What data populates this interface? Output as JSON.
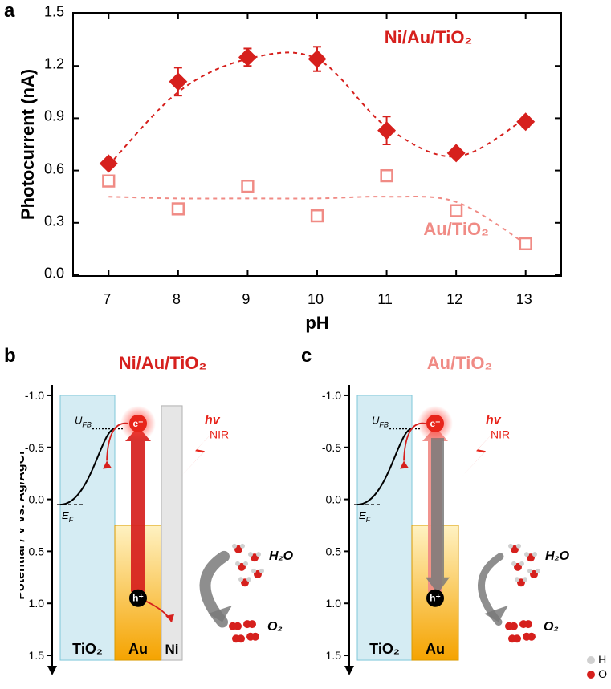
{
  "panel_a": {
    "label": "a",
    "type": "scatter_errorbar",
    "xlabel": "pH",
    "ylabel": "Photocurrent (nA)",
    "label_fontsize": 22,
    "tick_fontsize": 18,
    "xlim": [
      6.5,
      13.5
    ],
    "ylim": [
      0.0,
      1.5
    ],
    "xticks": [
      7,
      8,
      9,
      10,
      11,
      12,
      13
    ],
    "yticks": [
      0.0,
      0.3,
      0.6,
      0.9,
      1.2,
      1.5
    ],
    "background_color": "#ffffff",
    "border_color": "#000000",
    "series": [
      {
        "name": "Ni/Au/TiO2",
        "display_label": "Ni/Au/TiO₂",
        "color": "#d6201d",
        "marker": "diamond_filled",
        "marker_size": 14,
        "line_dash": "5,5",
        "data": [
          {
            "x": 7,
            "y": 0.64,
            "err": 0.02
          },
          {
            "x": 8,
            "y": 1.11,
            "err": 0.08
          },
          {
            "x": 9,
            "y": 1.25,
            "err": 0.05
          },
          {
            "x": 10,
            "y": 1.24,
            "err": 0.07
          },
          {
            "x": 11,
            "y": 0.83,
            "err": 0.08
          },
          {
            "x": 12,
            "y": 0.7,
            "err": 0.02
          },
          {
            "x": 13,
            "y": 0.88,
            "err": 0.03
          }
        ],
        "label_pos": {
          "x": 11.6,
          "y": 1.33
        }
      },
      {
        "name": "Au/TiO2",
        "display_label": "Au/TiO₂",
        "color": "#f08b85",
        "marker": "square_open",
        "marker_size": 11,
        "line_dash": "5,5",
        "data": [
          {
            "x": 7,
            "y": 0.54,
            "err": 0.03
          },
          {
            "x": 8,
            "y": 0.38,
            "err": 0.02
          },
          {
            "x": 9,
            "y": 0.51,
            "err": 0.02
          },
          {
            "x": 10,
            "y": 0.34,
            "err": 0.02
          },
          {
            "x": 11,
            "y": 0.57,
            "err": 0.03
          },
          {
            "x": 12,
            "y": 0.37,
            "err": 0.02
          },
          {
            "x": 13,
            "y": 0.18,
            "err": 0.02
          }
        ],
        "label_pos": {
          "x": 12.0,
          "y": 0.23
        }
      }
    ]
  },
  "diagrams": {
    "title_b": "Ni/Au/TiO₂",
    "title_c": "Au/TiO₂",
    "color_b": "#d6201d",
    "color_c": "#f08b85",
    "potential_axis_label": "Potential / V vs. Ag/AgCl",
    "potential_ticks": [
      -1.0,
      -0.5,
      0.0,
      0.5,
      1.0,
      1.5
    ],
    "tio2_color": "#d5ecf3",
    "tio2_border": "#7fc7d9",
    "au_top_color": "#fff2c2",
    "au_bottom_color": "#f5a300",
    "au_border": "#d99a00",
    "ni_color": "#e6e6e6",
    "ni_border": "#b0b0b0",
    "ef_label": "E",
    "ef_sub": "F",
    "ufb_label": "U",
    "ufb_sub": "FB",
    "hv_label": "hv",
    "nir_label": "NIR",
    "h2o_label": "H₂O",
    "o2_label": "O₂",
    "e_label": "e⁻",
    "h_label": "h⁺",
    "mat_tio2": "TiO₂",
    "mat_au": "Au",
    "mat_ni": "Ni",
    "legend_h": "H",
    "legend_o": "O",
    "legend_h_color": "#d0d0d0",
    "legend_o_color": "#d6201d",
    "hole_arrow_color_b": "#7a7a7a",
    "recombine_arrow_color": "#7a7a7a",
    "bolt_color": "#e8251b"
  },
  "panel_b": {
    "label": "b"
  },
  "panel_c": {
    "label": "c"
  }
}
